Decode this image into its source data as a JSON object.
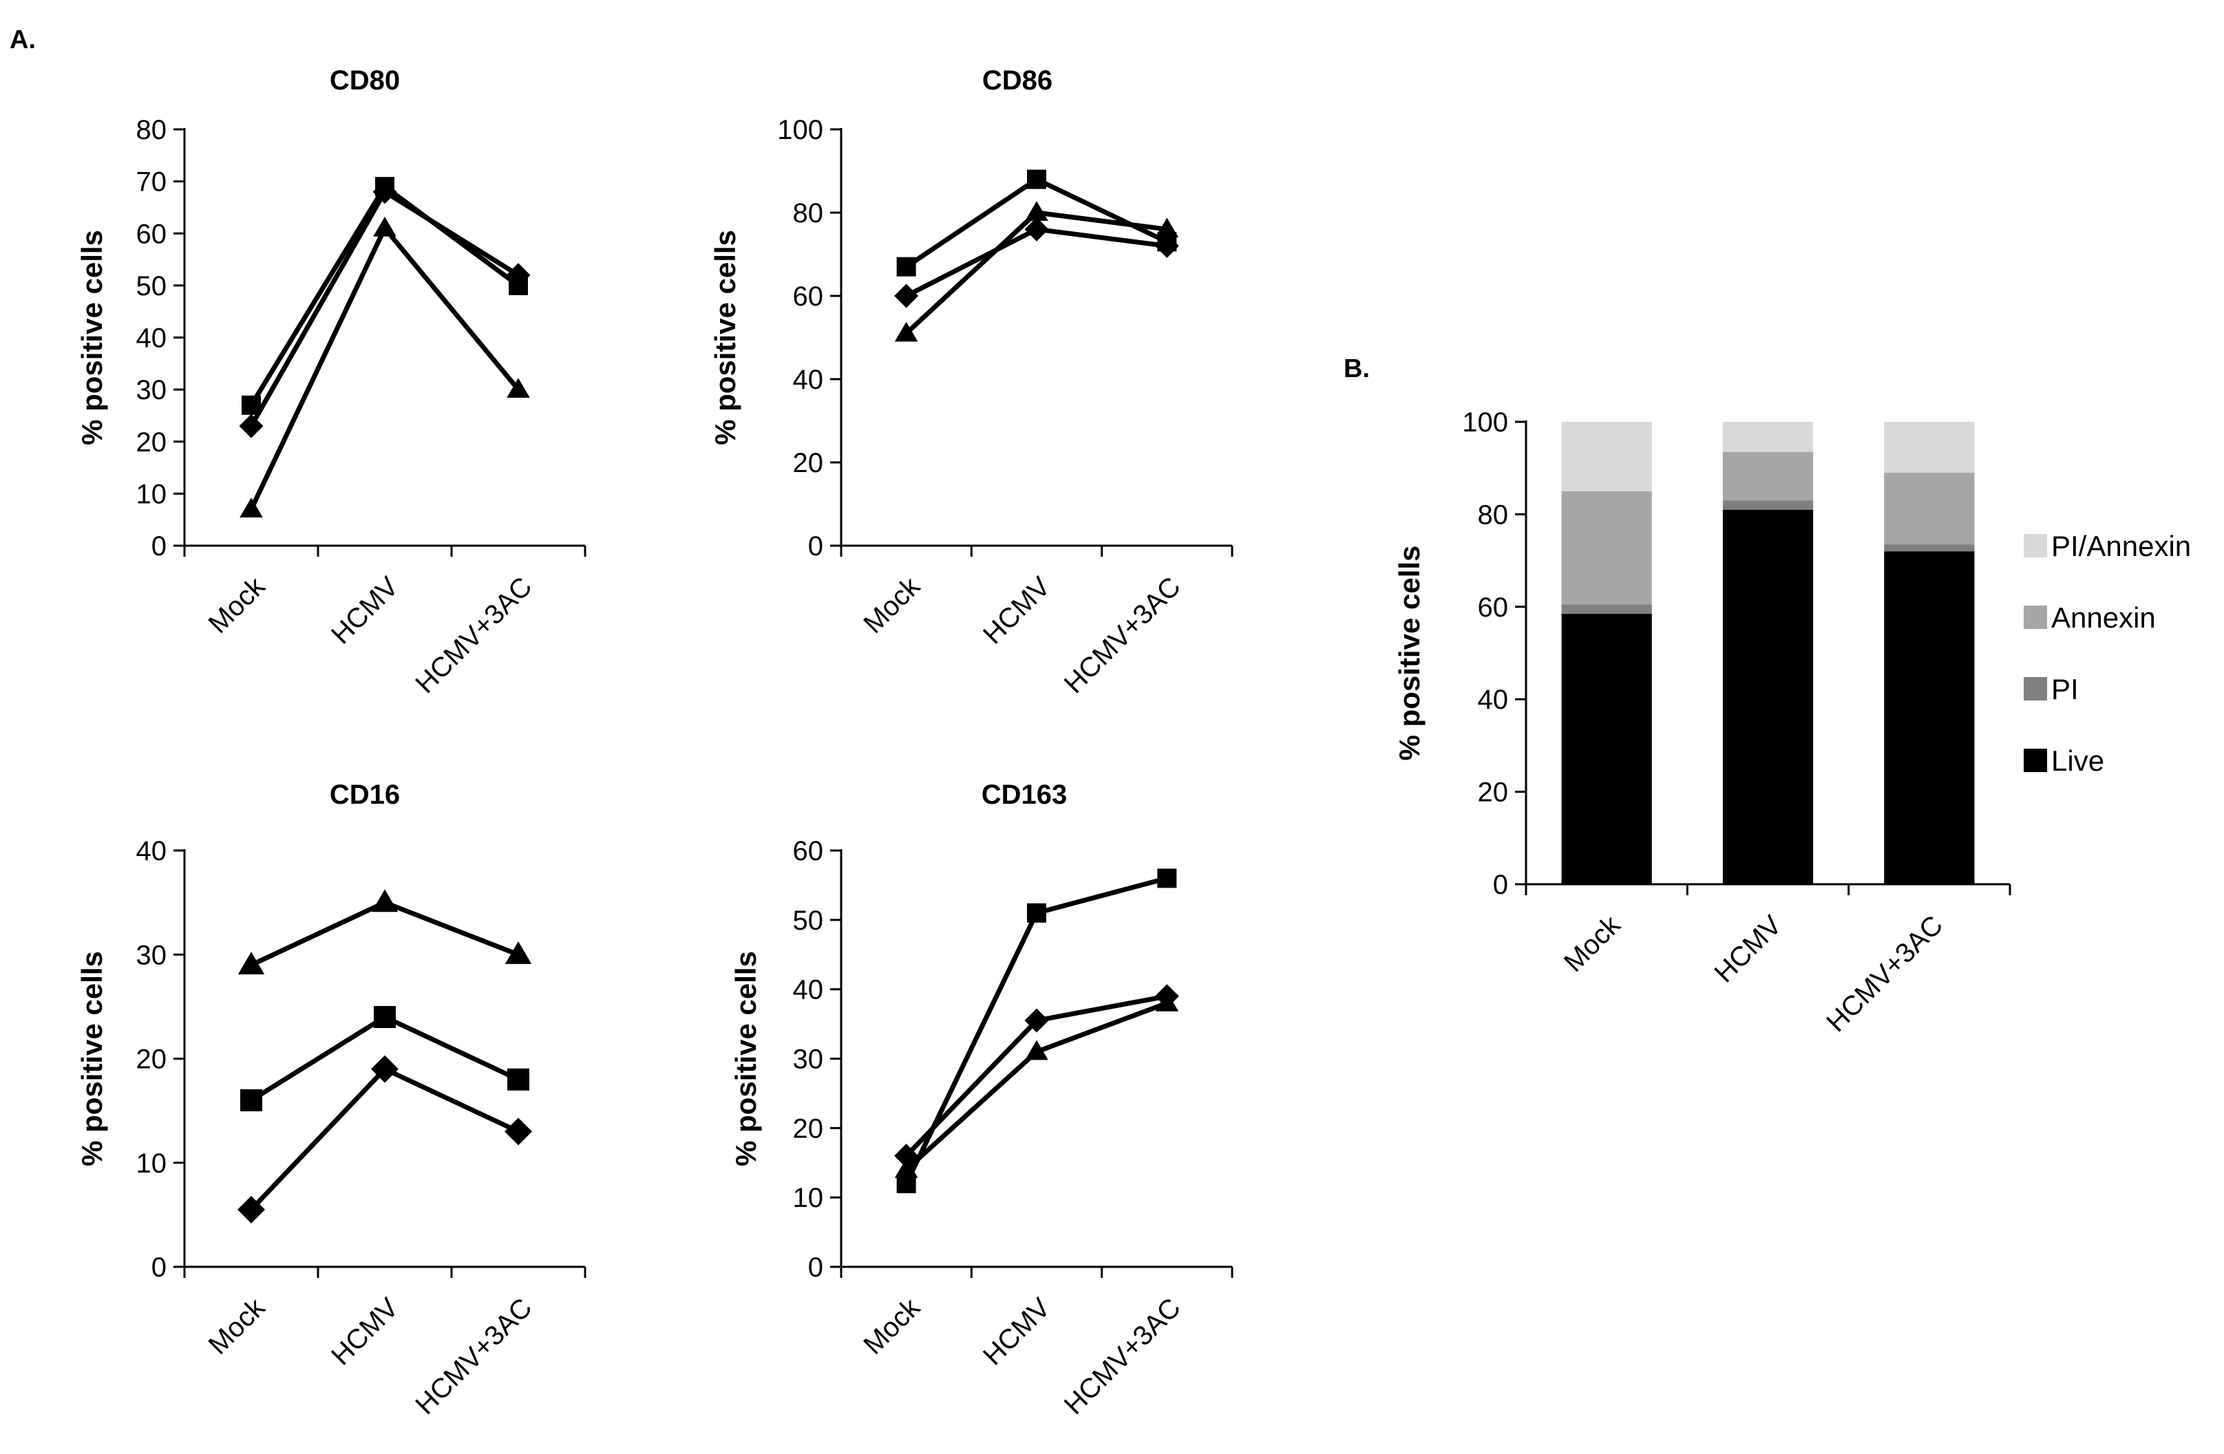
{
  "panels": {
    "a_label": "A.",
    "b_label": "B."
  },
  "chart_data": [
    {
      "id": "cd80",
      "type": "line",
      "title": "CD80",
      "ylabel": "% positive cells",
      "xlabel": "",
      "categories": [
        "Mock",
        "HCMV",
        "HCMV+3AC"
      ],
      "ylim": [
        0,
        80
      ],
      "yticks": [
        0,
        10,
        20,
        30,
        40,
        50,
        60,
        70,
        80
      ],
      "grid": false,
      "series": [
        {
          "marker": "square",
          "values": [
            27,
            69,
            50
          ]
        },
        {
          "marker": "diamond",
          "values": [
            23,
            68,
            52
          ]
        },
        {
          "marker": "triangle",
          "values": [
            7,
            61,
            30
          ]
        }
      ]
    },
    {
      "id": "cd86",
      "type": "line",
      "title": "CD86",
      "ylabel": "% positive cells",
      "xlabel": "",
      "categories": [
        "Mock",
        "HCMV",
        "HCMV+3AC"
      ],
      "ylim": [
        0,
        100
      ],
      "yticks": [
        0,
        20,
        40,
        60,
        80,
        100
      ],
      "grid": false,
      "series": [
        {
          "marker": "square",
          "values": [
            67,
            88,
            73
          ]
        },
        {
          "marker": "diamond",
          "values": [
            60,
            76,
            72
          ]
        },
        {
          "marker": "triangle",
          "values": [
            51,
            80,
            76
          ]
        }
      ]
    },
    {
      "id": "cd16",
      "type": "line",
      "title": "CD16",
      "ylabel": "% positive cells",
      "xlabel": "",
      "categories": [
        "Mock",
        "HCMV",
        "HCMV+3AC"
      ],
      "ylim": [
        0,
        40
      ],
      "yticks": [
        0,
        10,
        20,
        30,
        40
      ],
      "grid": false,
      "series": [
        {
          "marker": "triangle",
          "values": [
            29,
            35,
            30
          ]
        },
        {
          "marker": "square",
          "values": [
            16,
            24,
            18
          ]
        },
        {
          "marker": "diamond",
          "values": [
            5.5,
            19,
            13
          ]
        }
      ]
    },
    {
      "id": "cd163",
      "type": "line",
      "title": "CD163",
      "ylabel": "% positive cells",
      "xlabel": "",
      "categories": [
        "Mock",
        "HCMV",
        "HCMV+3AC"
      ],
      "ylim": [
        0,
        60
      ],
      "yticks": [
        0,
        10,
        20,
        30,
        40,
        50,
        60
      ],
      "grid": false,
      "series": [
        {
          "marker": "square",
          "values": [
            12,
            51,
            56
          ]
        },
        {
          "marker": "diamond",
          "values": [
            16,
            35.5,
            39
          ]
        },
        {
          "marker": "triangle",
          "values": [
            14,
            31,
            38
          ]
        }
      ]
    },
    {
      "id": "viability",
      "type": "bar",
      "stacked": true,
      "title": "",
      "ylabel": "% positive cells",
      "xlabel": "",
      "categories": [
        "Mock",
        "HCMV",
        "HCMV+3AC"
      ],
      "ylim": [
        0,
        100
      ],
      "yticks": [
        0,
        20,
        40,
        60,
        80,
        100
      ],
      "grid": false,
      "legend_position": "right",
      "series": [
        {
          "name": "Live",
          "color": "#000000",
          "values": [
            58.5,
            81,
            72
          ]
        },
        {
          "name": "PI",
          "color": "#808080",
          "values": [
            2,
            2,
            1.5
          ]
        },
        {
          "name": "Annexin",
          "color": "#a6a6a6",
          "values": [
            24.5,
            10.5,
            15.5
          ]
        },
        {
          "name": "PI/Annexin",
          "color": "#d9d9d9",
          "values": [
            15,
            6.5,
            11
          ]
        }
      ],
      "legend_order": [
        "PI/Annexin",
        "Annexin",
        "PI",
        "Live"
      ]
    }
  ]
}
